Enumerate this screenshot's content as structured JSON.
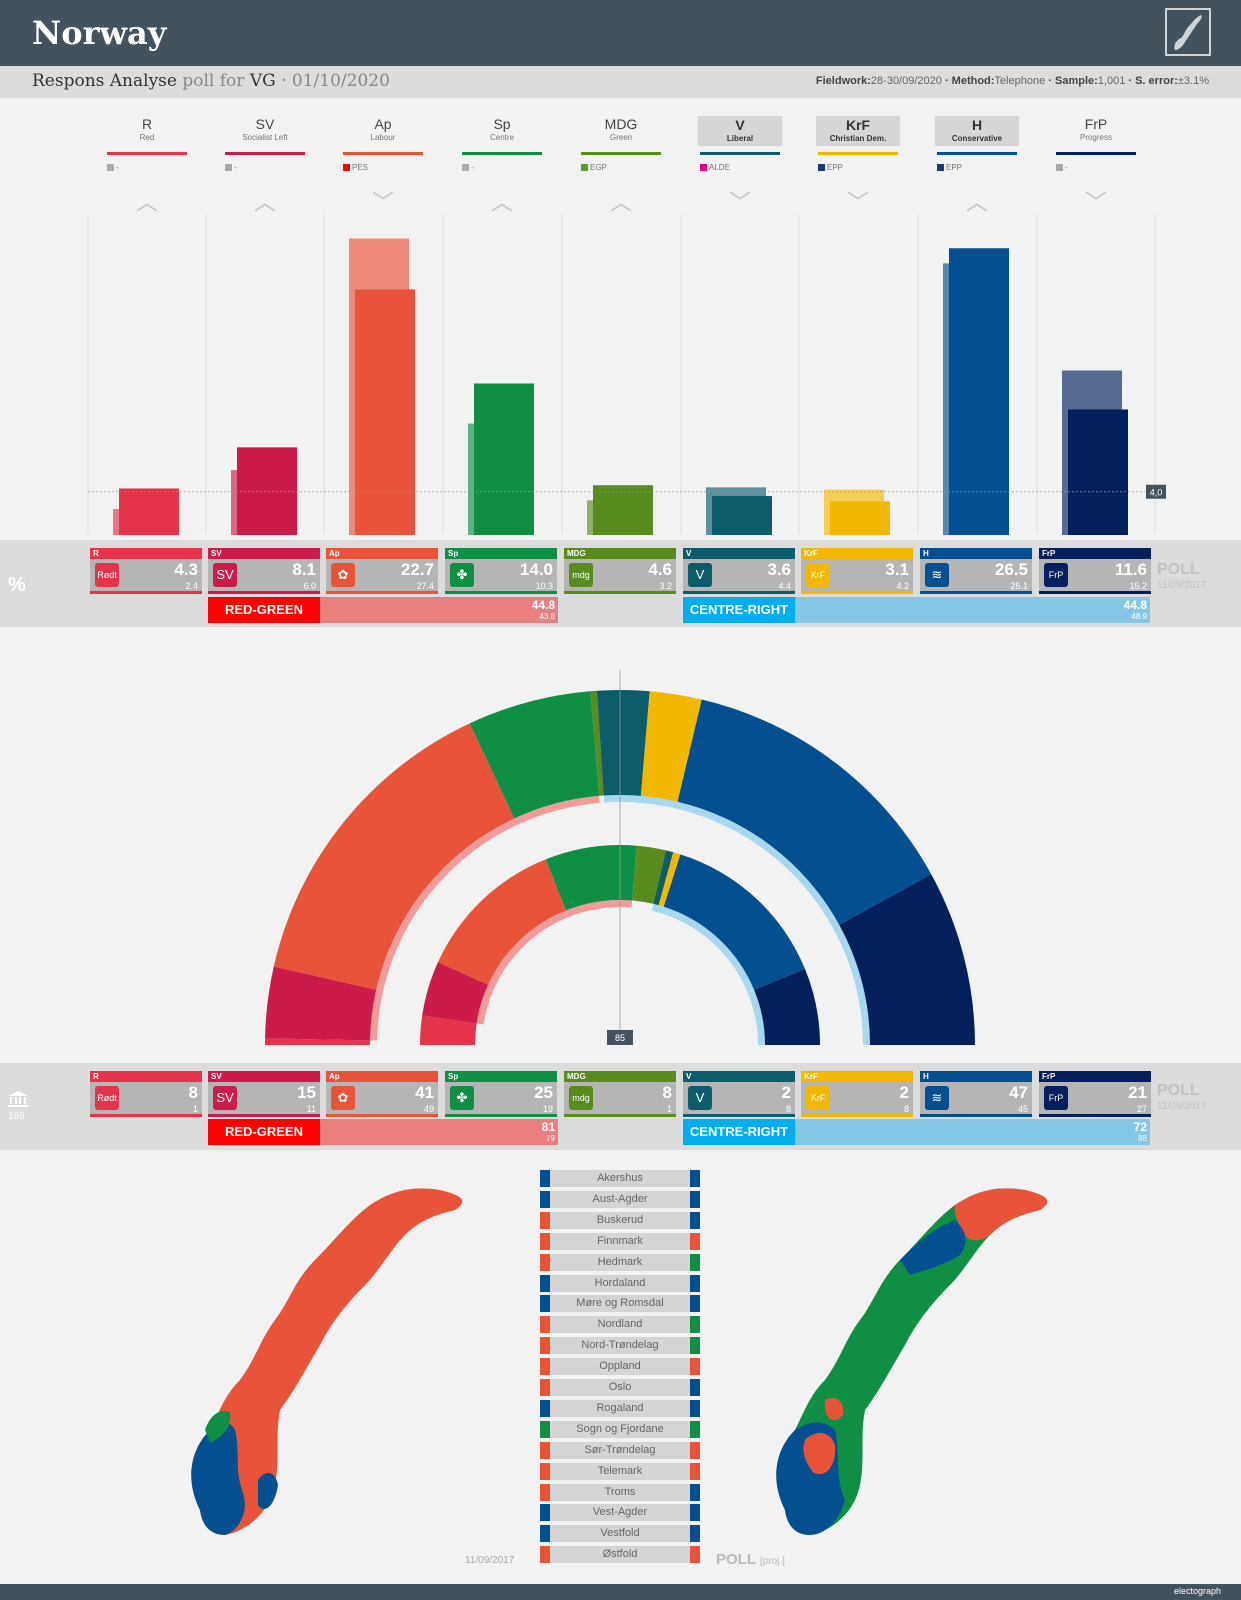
{
  "header": {
    "country": "Norway"
  },
  "subheader": {
    "pollster": "Respons Analyse",
    "poll_for": "poll for",
    "client": "VG",
    "date": "· 01/10/2020",
    "fieldwork_label": "Fieldwork:",
    "fieldwork": "28-30/09/2020",
    "method_label": "· Method:",
    "method": "Telephone",
    "sample_label": "· Sample:",
    "sample": "1,001",
    "error_label": "· S. error:",
    "error": "±3.1%"
  },
  "threshold_label": "4,0",
  "majority_label": "85",
  "percent_symbol": "%",
  "seats_total": "169",
  "poll_word": "POLL",
  "prev_date": "11/09/2017",
  "proj_label": "[proj.]",
  "brand": "electograph",
  "colors": {
    "R": "#e4334a",
    "SV": "#cb1b4a",
    "Ap": "#e9533a",
    "Sp": "#0e8f45",
    "MDG": "#5a8b1e",
    "V": "#0c5c6b",
    "KrF": "#f2b800",
    "H": "#034f8f",
    "FrP": "#03205c",
    "red_green": "#ff0000",
    "red_green_bar": "#e88080",
    "centre_right": "#00aeef",
    "centre_right_bar": "#85c7e6"
  },
  "parties": [
    {
      "abbr": "R",
      "full": "Red",
      "euro": "-",
      "euro_color": "#aaaaaa",
      "trend": "up",
      "logo": "Rødt",
      "icon": "star-icon"
    },
    {
      "abbr": "SV",
      "full": "Socialist Left",
      "euro": "-",
      "euro_color": "#aaaaaa",
      "trend": "up",
      "logo": "SV",
      "icon": "sv-logo-icon"
    },
    {
      "abbr": "Ap",
      "full": "Labour",
      "euro": "PES",
      "euro_color": "#ff0000",
      "trend": "down",
      "logo": "✿",
      "icon": "rose-icon"
    },
    {
      "abbr": "Sp",
      "full": "Centre",
      "euro": "-",
      "euro_color": "#aaaaaa",
      "trend": "up",
      "logo": "✤",
      "icon": "clover-icon"
    },
    {
      "abbr": "MDG",
      "full": "Green",
      "euro": "EGP",
      "euro_color": "#5a9e2e",
      "trend": "up",
      "logo": "mdg",
      "icon": "mdg-logo-icon"
    },
    {
      "abbr": "V",
      "full": "Liberal",
      "euro": "ALDE",
      "euro_color": "#e6007e",
      "trend": "down",
      "logo": "V",
      "icon": "v-logo-icon"
    },
    {
      "abbr": "KrF",
      "full": "Christian Dem.",
      "euro": "EPP",
      "euro_color": "#1b3a6b",
      "trend": "down",
      "logo": "KrF",
      "icon": "krf-logo-icon"
    },
    {
      "abbr": "H",
      "full": "Conservative",
      "euro": "EPP",
      "euro_color": "#1b3a6b",
      "trend": "up",
      "logo": "≋",
      "icon": "hoyre-logo-icon"
    },
    {
      "abbr": "FrP",
      "full": "Progress",
      "euro": "-",
      "euro_color": "#aaaaaa",
      "trend": "down",
      "logo": "FrP",
      "icon": "frp-logo-icon"
    }
  ],
  "coalitions": {
    "red_green": {
      "label": "RED-GREEN",
      "pct": "44.8",
      "pct_old": "43.8",
      "seats": "81",
      "seats_old": "79"
    },
    "centre_right": {
      "label": "CENTRE-RIGHT",
      "pct": "44.8",
      "pct_old": "48.9",
      "seats": "72",
      "seats_old": "88"
    }
  },
  "regions": [
    {
      "name": "Akershus",
      "left": "#034f8f",
      "right": "#034f8f"
    },
    {
      "name": "Aust-Agder",
      "left": "#034f8f",
      "right": "#034f8f"
    },
    {
      "name": "Buskerud",
      "left": "#e9533a",
      "right": "#034f8f"
    },
    {
      "name": "Finnmark",
      "left": "#e9533a",
      "right": "#e9533a"
    },
    {
      "name": "Hedmark",
      "left": "#e9533a",
      "right": "#0e8f45"
    },
    {
      "name": "Hordaland",
      "left": "#034f8f",
      "right": "#034f8f"
    },
    {
      "name": "Møre og Romsdal",
      "left": "#034f8f",
      "right": "#034f8f"
    },
    {
      "name": "Nordland",
      "left": "#e9533a",
      "right": "#0e8f45"
    },
    {
      "name": "Nord-Trøndelag",
      "left": "#e9533a",
      "right": "#0e8f45"
    },
    {
      "name": "Oppland",
      "left": "#e9533a",
      "right": "#e9533a"
    },
    {
      "name": "Oslo",
      "left": "#e9533a",
      "right": "#034f8f"
    },
    {
      "name": "Rogaland",
      "left": "#034f8f",
      "right": "#034f8f"
    },
    {
      "name": "Sogn og Fjordane",
      "left": "#0e8f45",
      "right": "#0e8f45"
    },
    {
      "name": "Sør-Trøndelag",
      "left": "#e9533a",
      "right": "#e9533a"
    },
    {
      "name": "Telemark",
      "left": "#e9533a",
      "right": "#e9533a"
    },
    {
      "name": "Troms",
      "left": "#e9533a",
      "right": "#034f8f"
    },
    {
      "name": "Vest-Agder",
      "left": "#034f8f",
      "right": "#034f8f"
    },
    {
      "name": "Vestfold",
      "left": "#034f8f",
      "right": "#034f8f"
    },
    {
      "name": "Østfold",
      "left": "#e9533a",
      "right": "#e9533a"
    }
  ],
  "chart_data": [
    {
      "type": "bar",
      "categories": [
        "R",
        "SV",
        "Ap",
        "Sp",
        "MDG",
        "V",
        "KrF",
        "H",
        "FrP"
      ],
      "series": [
        {
          "name": "POLL",
          "values": [
            4.3,
            8.1,
            22.7,
            14.0,
            4.6,
            3.6,
            3.1,
            26.5,
            11.6
          ]
        },
        {
          "name": "11/09/2017",
          "values": [
            2.4,
            6.0,
            27.4,
            10.3,
            3.2,
            4.4,
            4.2,
            25.1,
            15.2
          ]
        }
      ],
      "value_labels": [
        "4.3",
        "8.1",
        "22.7",
        "14.0",
        "4.6",
        "3.6",
        "3.1",
        "26.5",
        "11.6"
      ],
      "old_labels": [
        "2.4",
        "6.0",
        "27.4",
        "10.3",
        "3.2",
        "4.4",
        "4.2",
        "25.1",
        "15.2"
      ],
      "threshold": 4.0,
      "ylim": [
        0,
        28
      ]
    },
    {
      "type": "pie",
      "categories": [
        "R",
        "SV",
        "Ap",
        "Sp",
        "MDG",
        "V",
        "KrF",
        "H",
        "FrP"
      ],
      "series": [
        {
          "name": "POLL",
          "values": [
            8,
            15,
            41,
            25,
            8,
            2,
            2,
            47,
            21
          ]
        },
        {
          "name": "11/09/2017",
          "values": [
            1,
            11,
            49,
            19,
            1,
            8,
            8,
            45,
            27
          ]
        }
      ],
      "total": 169,
      "majority": 85
    }
  ]
}
